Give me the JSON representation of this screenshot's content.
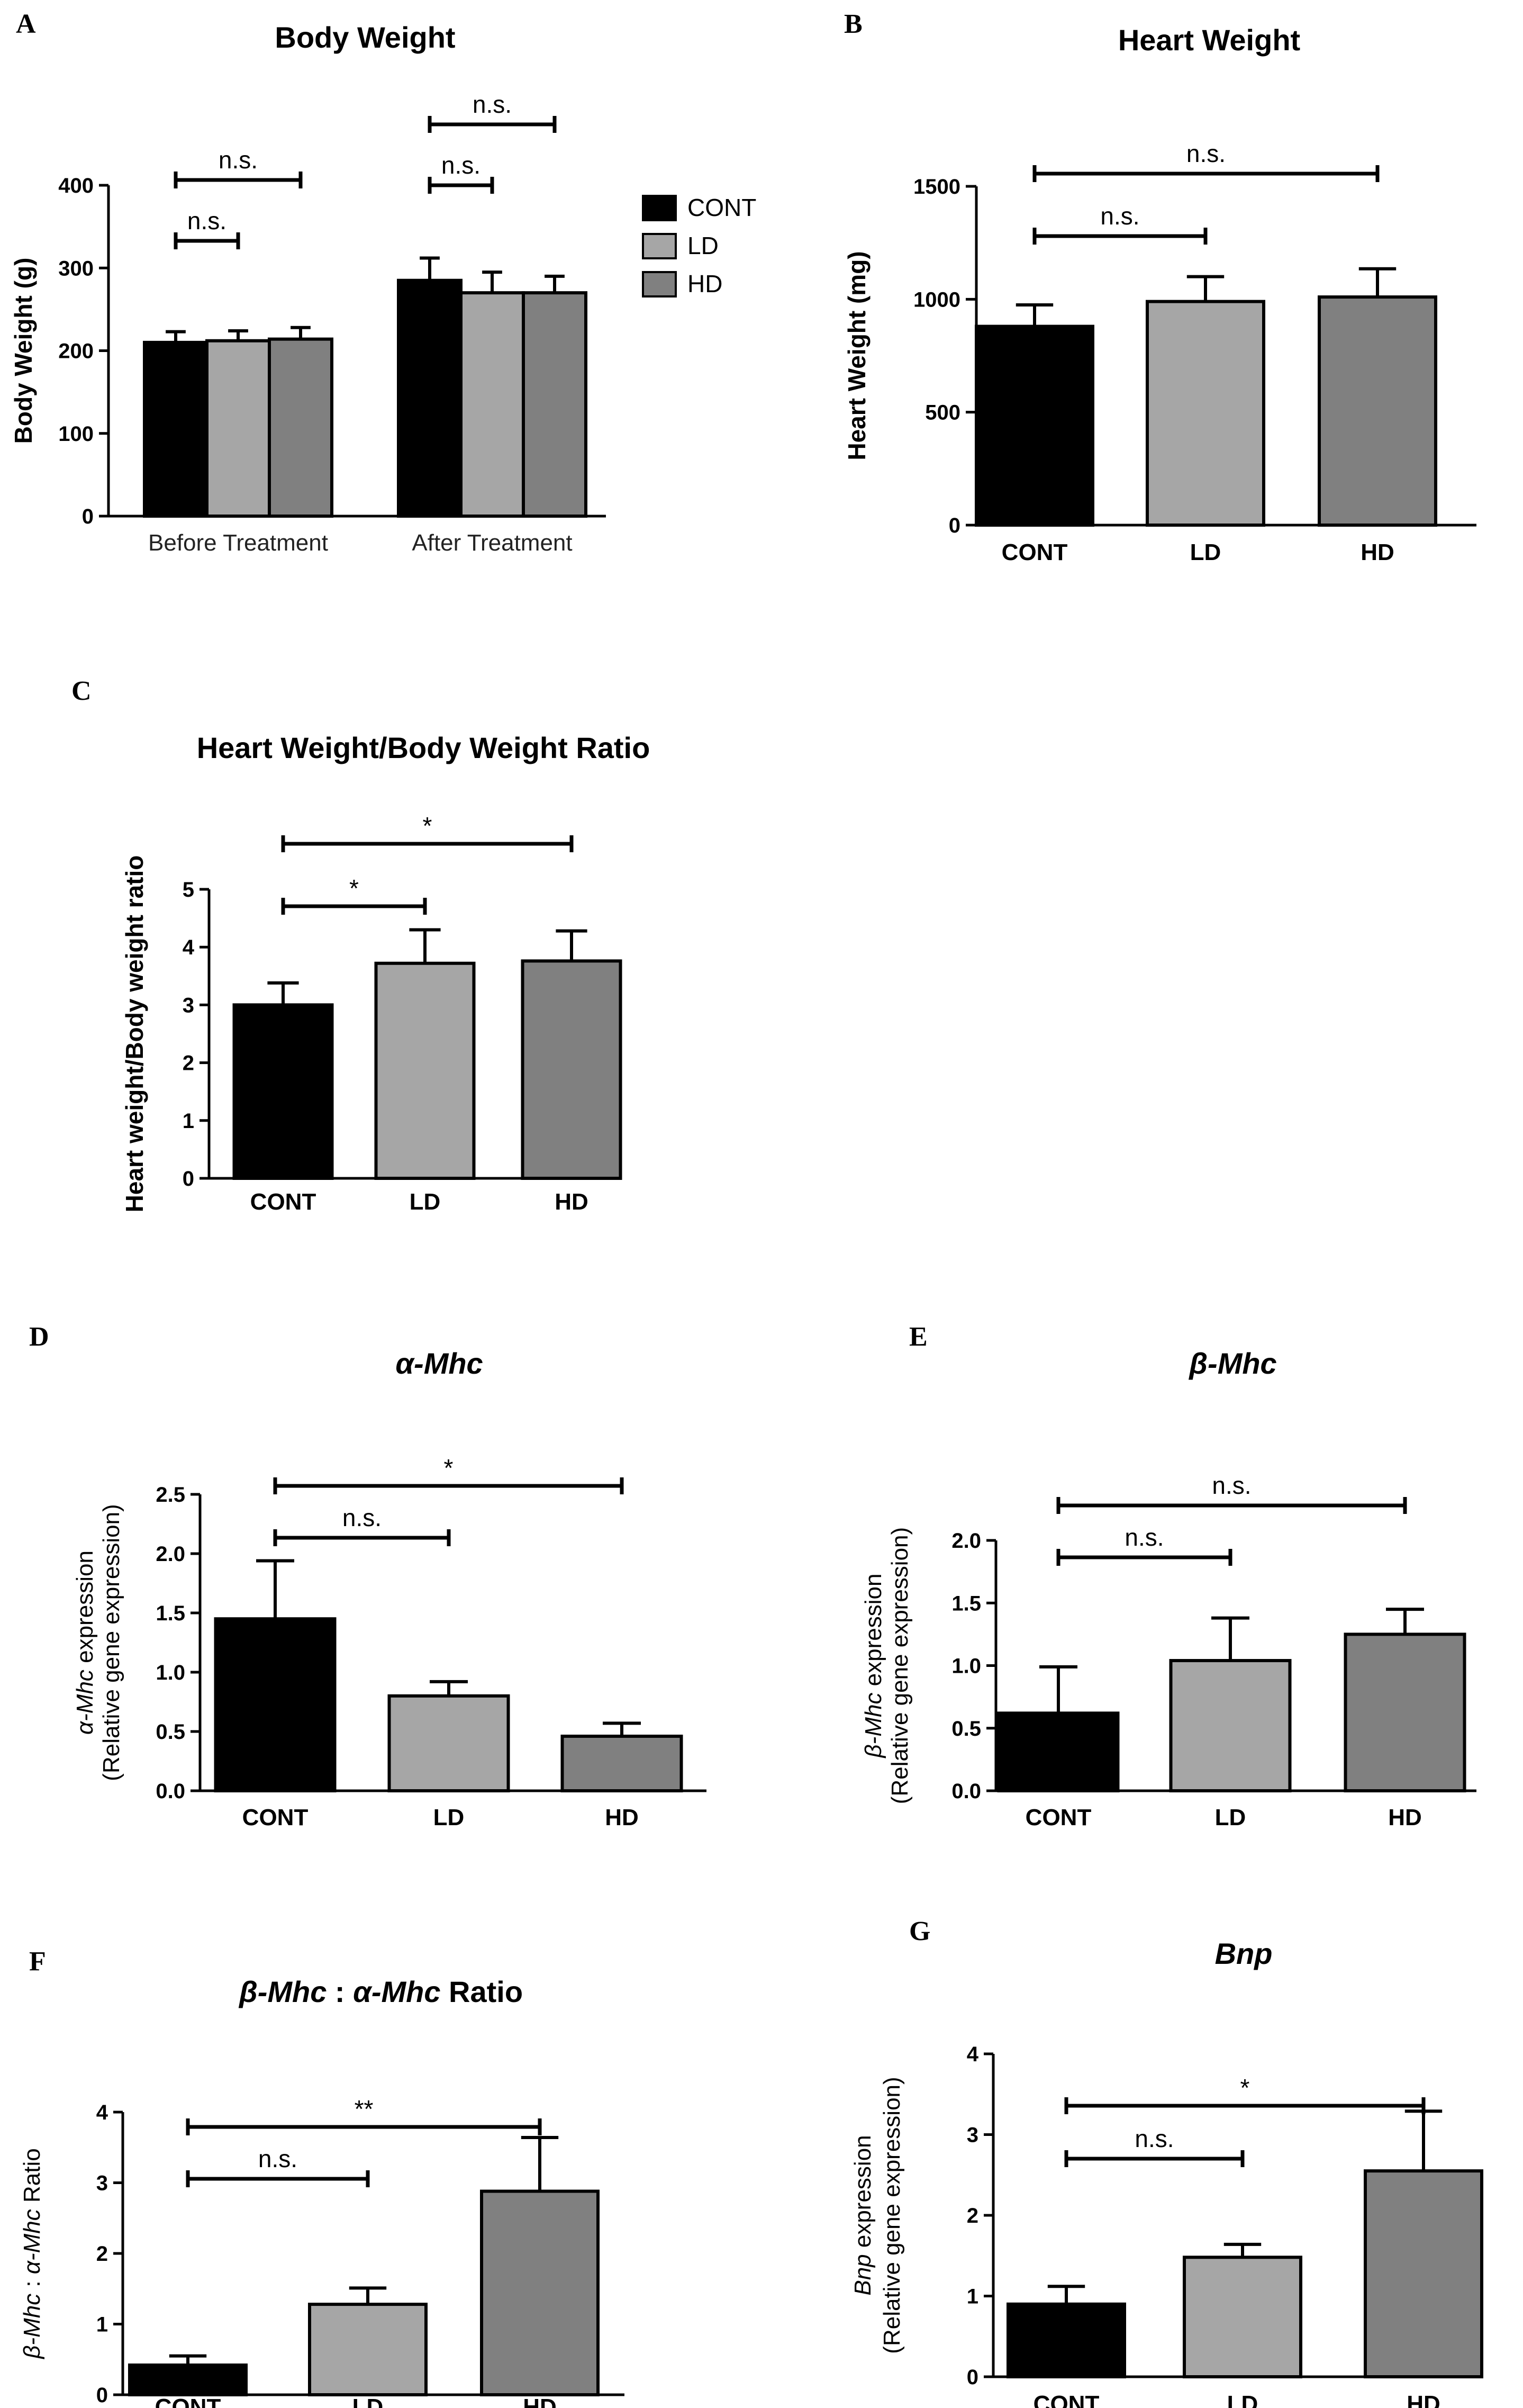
{
  "chart_data": [
    {
      "id": "A",
      "letter": "A",
      "type": "bar",
      "title": "Body Weight",
      "ylabel": "Body Weight (g)",
      "ylim": [
        0,
        400
      ],
      "yticks": [
        "0",
        "100",
        "200",
        "300",
        "400"
      ],
      "grouped": true,
      "categories": [
        "Before Treatment",
        "After Treatment"
      ],
      "series": [
        {
          "name": "CONT",
          "color": "#000000",
          "values": [
            210,
            285
          ],
          "errors": [
            13,
            27
          ]
        },
        {
          "name": "LD",
          "color": "#a6a6a6",
          "values": [
            212,
            270
          ],
          "errors": [
            12,
            25
          ]
        },
        {
          "name": "HD",
          "color": "#808080",
          "values": [
            214,
            270
          ],
          "errors": [
            14,
            20
          ]
        }
      ],
      "legend": {
        "placement": "right",
        "entries": [
          "CONT",
          "LD",
          "HD"
        ]
      },
      "significance": [
        {
          "label": "n.s.",
          "group": 0,
          "from": 0,
          "to": 1,
          "level": 1
        },
        {
          "label": "n.s.",
          "group": 0,
          "from": 0,
          "to": 2,
          "level": 2
        },
        {
          "label": "n.s.",
          "group": 1,
          "from": 0,
          "to": 1,
          "level": 1
        },
        {
          "label": "n.s.",
          "group": 1,
          "from": 0,
          "to": 2,
          "level": 2
        }
      ]
    },
    {
      "id": "B",
      "letter": "B",
      "type": "bar",
      "title": "Heart Weight",
      "ylabel": "Heart Weight (mg)",
      "ylim": [
        0,
        1500
      ],
      "yticks": [
        "0",
        "500",
        "1000",
        "1500"
      ],
      "categories": [
        "CONT",
        "LD",
        "HD"
      ],
      "colors": [
        "#000000",
        "#a6a6a6",
        "#808080"
      ],
      "values": [
        880,
        990,
        1010
      ],
      "errors": [
        95,
        110,
        125
      ],
      "significance": [
        {
          "label": "n.s.",
          "from": 0,
          "to": 1,
          "level": 1
        },
        {
          "label": "n.s.",
          "from": 0,
          "to": 2,
          "level": 2
        }
      ]
    },
    {
      "id": "C",
      "letter": "C",
      "type": "bar",
      "title": "Heart Weight/Body Weight Ratio",
      "ylabel": "Heart weight/Body weight ratio",
      "ylim": [
        0,
        5
      ],
      "yticks": [
        "0",
        "1",
        "2",
        "3",
        "4",
        "5"
      ],
      "categories": [
        "CONT",
        "LD",
        "HD"
      ],
      "colors": [
        "#000000",
        "#a6a6a6",
        "#808080"
      ],
      "values": [
        3.0,
        3.72,
        3.76
      ],
      "errors": [
        0.38,
        0.58,
        0.52
      ],
      "significance": [
        {
          "label": "*",
          "from": 0,
          "to": 1,
          "level": 1
        },
        {
          "label": "*",
          "from": 0,
          "to": 2,
          "level": 2
        }
      ]
    },
    {
      "id": "D",
      "letter": "D",
      "type": "bar",
      "title": "α-Mhc",
      "ylabel_line1_italic": "α-Mhc",
      "ylabel_line1_rest": " expression",
      "ylabel_line2": "(Relative gene expression)",
      "ylim": [
        0,
        2.5
      ],
      "yticks": [
        "0.0",
        "0.5",
        "1.0",
        "1.5",
        "2.0",
        "2.5"
      ],
      "categories": [
        "CONT",
        "LD",
        "HD"
      ],
      "colors": [
        "#000000",
        "#a6a6a6",
        "#808080"
      ],
      "values": [
        1.45,
        0.8,
        0.46
      ],
      "errors": [
        0.49,
        0.12,
        0.11
      ],
      "significance": [
        {
          "label": "n.s.",
          "from": 0,
          "to": 1,
          "level": 1
        },
        {
          "label": "*",
          "from": 0,
          "to": 2,
          "level": 2
        }
      ]
    },
    {
      "id": "E",
      "letter": "E",
      "type": "bar",
      "title": "β-Mhc",
      "ylabel_line1_italic": "β-Mhc",
      "ylabel_line1_rest": " expression",
      "ylabel_line2": "(Relative gene expression)",
      "ylim": [
        0,
        2.0
      ],
      "yticks": [
        "0.0",
        "0.5",
        "1.0",
        "1.5",
        "2.0"
      ],
      "categories": [
        "CONT",
        "LD",
        "HD"
      ],
      "colors": [
        "#000000",
        "#a6a6a6",
        "#808080"
      ],
      "values": [
        0.62,
        1.04,
        1.25
      ],
      "errors": [
        0.37,
        0.34,
        0.2
      ],
      "significance": [
        {
          "label": "n.s.",
          "from": 0,
          "to": 1,
          "level": 1
        },
        {
          "label": "n.s.",
          "from": 0,
          "to": 2,
          "level": 2
        }
      ]
    },
    {
      "id": "F",
      "letter": "F",
      "type": "bar",
      "title_italic_1": "β-Mhc",
      "title_mid": " : ",
      "title_italic_2": "α-Mhc",
      "title_rest": " Ratio",
      "ylabel_italic_1": "β-Mhc",
      "ylabel_mid": " : ",
      "ylabel_italic_2": "α-Mhc",
      "ylabel_rest": " Ratio",
      "ylim": [
        0,
        4
      ],
      "yticks": [
        "0",
        "1",
        "2",
        "3",
        "4"
      ],
      "categories": [
        "CONT",
        "LD",
        "HD"
      ],
      "colors": [
        "#000000",
        "#a6a6a6",
        "#808080"
      ],
      "values": [
        0.42,
        1.28,
        2.88
      ],
      "errors": [
        0.13,
        0.23,
        0.76
      ],
      "significance": [
        {
          "label": "n.s.",
          "from": 0,
          "to": 1,
          "level": 1
        },
        {
          "label": "**",
          "from": 0,
          "to": 2,
          "level": 2
        }
      ]
    },
    {
      "id": "G",
      "letter": "G",
      "type": "bar",
      "title": "Bnp",
      "ylabel_line1_italic": "Bnp",
      "ylabel_line1_rest": " expression",
      "ylabel_line2": "(Relative gene expression)",
      "ylim": [
        0,
        4
      ],
      "yticks": [
        "0",
        "1",
        "2",
        "3",
        "4"
      ],
      "categories": [
        "CONT",
        "LD",
        "HD"
      ],
      "colors": [
        "#000000",
        "#a6a6a6",
        "#808080"
      ],
      "values": [
        0.9,
        1.48,
        2.55
      ],
      "errors": [
        0.22,
        0.16,
        0.74
      ],
      "significance": [
        {
          "label": "n.s.",
          "from": 0,
          "to": 1,
          "level": 1
        },
        {
          "label": "*",
          "from": 0,
          "to": 2,
          "level": 2
        }
      ]
    }
  ]
}
